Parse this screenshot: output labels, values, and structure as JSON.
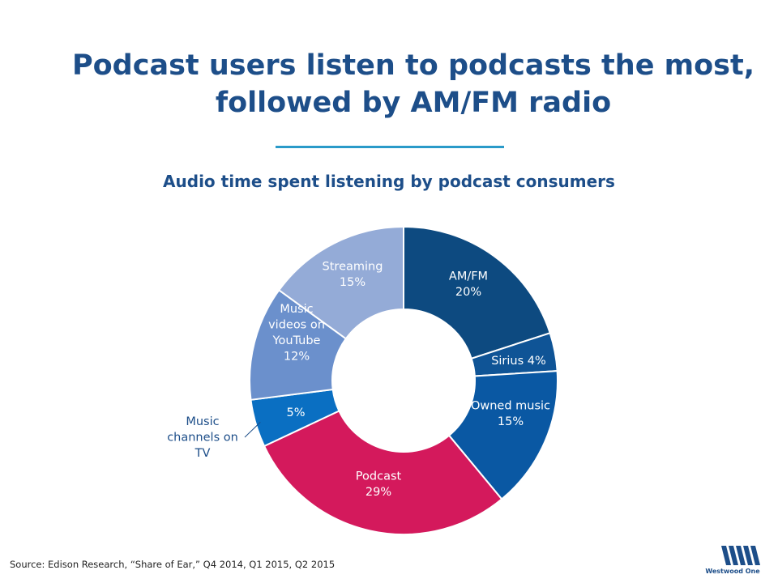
{
  "header": {
    "title_line1": "Podcast users listen to podcasts the most,",
    "title_line2": "followed by AM/FM radio"
  },
  "chart_data": {
    "type": "pie",
    "style": "donut",
    "title": "Audio time spent listening by podcast consumers",
    "unit": "%",
    "slices": [
      {
        "name": "AM/FM",
        "value": 20,
        "value_label": "20%",
        "color": "#0d4a80",
        "label_lines": [
          "AM/FM",
          "20%"
        ]
      },
      {
        "name": "Sirius",
        "value": 4,
        "value_label": "4%",
        "color": "#0f5496",
        "label_lines": [
          "Sirius 4%"
        ]
      },
      {
        "name": "Owned music",
        "value": 15,
        "value_label": "15%",
        "color": "#0a58a3",
        "label_lines": [
          "Owned music",
          "15%"
        ]
      },
      {
        "name": "Podcast",
        "value": 29,
        "value_label": "29%",
        "color": "#d4195c",
        "label_lines": [
          "Podcast",
          "29%"
        ]
      },
      {
        "name": "Music channels on TV",
        "value": 5,
        "value_label": "5%",
        "color": "#0a6fc2",
        "label_lines": [
          "5%"
        ],
        "callout_lines": [
          "Music",
          "channels on",
          "TV"
        ]
      },
      {
        "name": "Music videos on YouTube",
        "value": 12,
        "value_label": "12%",
        "color": "#6b90cc",
        "label_lines": [
          "Music",
          "videos on",
          "YouTube",
          "12%"
        ]
      },
      {
        "name": "Streaming",
        "value": 15,
        "value_label": "15%",
        "color": "#94abd7",
        "label_lines": [
          "Streaming",
          "15%"
        ]
      }
    ]
  },
  "footer": {
    "source": "Source: Edison Research, “Share of Ear,” Q4 2014, Q1 2015, Q2 2015",
    "logo_text": "Westwood One"
  },
  "colors": {
    "title": "#1d4e89",
    "rule": "#2a9ac9"
  }
}
